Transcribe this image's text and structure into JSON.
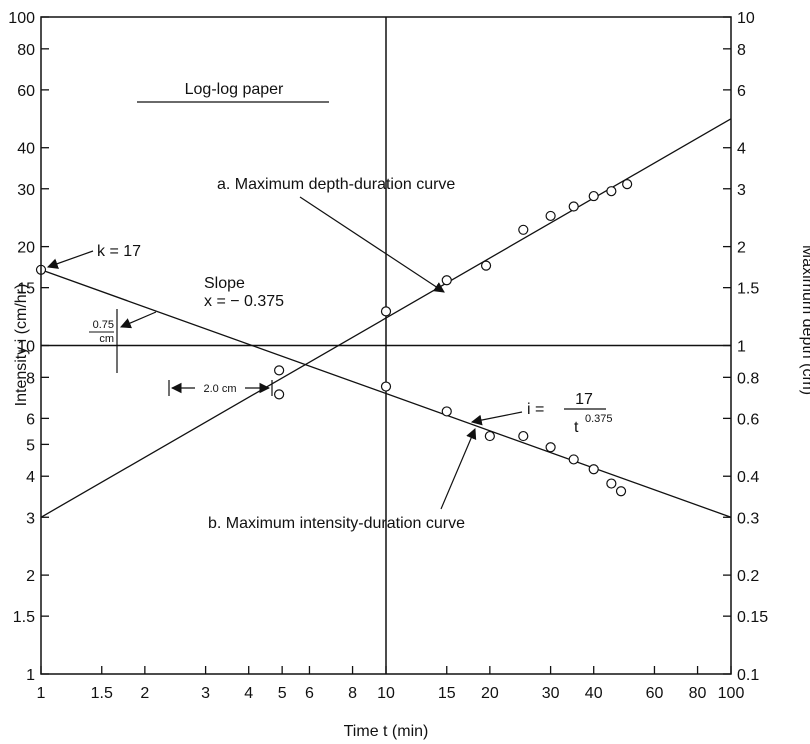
{
  "chart_data": {
    "type": "scatter",
    "x_scale": "log",
    "y_scale": "log",
    "grid": false,
    "xlabel": "Time t (min)",
    "ylabel_left": "Intensity i (cm/hr)",
    "ylabel_right": "Maximum depth (cm)",
    "xlim": [
      1,
      100
    ],
    "ylim_left": [
      1,
      100
    ],
    "ylim_right": [
      0.1,
      10
    ],
    "x_ticks": [
      {
        "v": 1,
        "label": "1"
      },
      {
        "v": 1.5,
        "label": "1.5"
      },
      {
        "v": 2,
        "label": "2"
      },
      {
        "v": 3,
        "label": "3"
      },
      {
        "v": 4,
        "label": "4"
      },
      {
        "v": 5,
        "label": "5"
      },
      {
        "v": 6,
        "label": "6"
      },
      {
        "v": 8,
        "label": "8"
      },
      {
        "v": 10,
        "label": "10"
      },
      {
        "v": 15,
        "label": "15"
      },
      {
        "v": 20,
        "label": "20"
      },
      {
        "v": 30,
        "label": "30"
      },
      {
        "v": 40,
        "label": "40"
      },
      {
        "v": 60,
        "label": "60"
      },
      {
        "v": 80,
        "label": "80"
      },
      {
        "v": 100,
        "label": "100"
      }
    ],
    "y_ticks_left": [
      {
        "v": 1,
        "label": "1"
      },
      {
        "v": 1.5,
        "label": "1.5"
      },
      {
        "v": 2,
        "label": "2"
      },
      {
        "v": 3,
        "label": "3"
      },
      {
        "v": 4,
        "label": "4"
      },
      {
        "v": 5,
        "label": "5"
      },
      {
        "v": 6,
        "label": "6"
      },
      {
        "v": 8,
        "label": "8"
      },
      {
        "v": 10,
        "label": "10"
      },
      {
        "v": 15,
        "label": "15"
      },
      {
        "v": 20,
        "label": "20"
      },
      {
        "v": 30,
        "label": "30"
      },
      {
        "v": 40,
        "label": "40"
      },
      {
        "v": 60,
        "label": "60"
      },
      {
        "v": 80,
        "label": "80"
      },
      {
        "v": 100,
        "label": "100"
      }
    ],
    "y_ticks_right": [
      {
        "v": 0.1,
        "label": "0.1"
      },
      {
        "v": 0.15,
        "label": "0.15"
      },
      {
        "v": 0.2,
        "label": "0.2"
      },
      {
        "v": 0.3,
        "label": "0.3"
      },
      {
        "v": 0.4,
        "label": "0.4"
      },
      {
        "v": 0.6,
        "label": "0.6"
      },
      {
        "v": 0.8,
        "label": "0.8"
      },
      {
        "v": 1,
        "label": "1"
      },
      {
        "v": 1.5,
        "label": "1.5"
      },
      {
        "v": 2,
        "label": "2"
      },
      {
        "v": 3,
        "label": "3"
      },
      {
        "v": 4,
        "label": "4"
      },
      {
        "v": 6,
        "label": "6"
      },
      {
        "v": 8,
        "label": "8"
      },
      {
        "v": 10,
        "label": "10"
      }
    ],
    "reference_lines": {
      "vertical_x": 10,
      "horizontal_y": 10
    },
    "series": [
      {
        "name": "a. Maximum depth-duration curve",
        "axis": "right",
        "line": [
          [
            1,
            0.3
          ],
          [
            100,
            4.9
          ]
        ],
        "points": [
          [
            10,
            1.27
          ],
          [
            15,
            1.58
          ],
          [
            19.5,
            1.75
          ],
          [
            25,
            2.25
          ],
          [
            30,
            2.48
          ],
          [
            35,
            2.65
          ],
          [
            40,
            2.85
          ],
          [
            45,
            2.95
          ],
          [
            50,
            3.1
          ]
        ]
      },
      {
        "name": "b. Maximum intensity-duration curve",
        "axis": "left",
        "line": [
          [
            1,
            17
          ],
          [
            100,
            3
          ]
        ],
        "points": [
          [
            1,
            17
          ],
          [
            4.9,
            8.4
          ],
          [
            4.9,
            7.1
          ],
          [
            10,
            7.5
          ],
          [
            15,
            6.3
          ],
          [
            20,
            5.3
          ],
          [
            25,
            5.3
          ],
          [
            30,
            4.9
          ],
          [
            35,
            4.5
          ],
          [
            40,
            4.2
          ],
          [
            45,
            3.8
          ],
          [
            48,
            3.6
          ]
        ]
      }
    ],
    "annotations": {
      "paper_label": "Log-log paper",
      "k_label": "k = 17",
      "slope_title": "Slope",
      "slope_value": "x = − 0.375",
      "rise_label": "0.75",
      "rise_unit": "cm",
      "run_label": "2.0 cm",
      "eq_lhs": "i =",
      "eq_num": "17",
      "eq_den": "t",
      "eq_exp": "0.375",
      "curve_a_label": "a. Maximum depth-duration curve",
      "curve_b_label": "b. Maximum intensity-duration curve"
    }
  }
}
